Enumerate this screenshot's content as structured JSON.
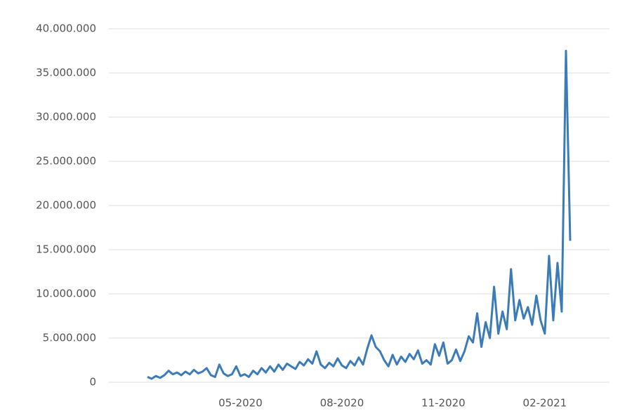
{
  "chart_data": {
    "type": "line",
    "categories": [
      null,
      null,
      null,
      null,
      null,
      null,
      null,
      null,
      null,
      null,
      null,
      null,
      null,
      null,
      null,
      null,
      null,
      null,
      null,
      null,
      null,
      null,
      "05-2020",
      null,
      null,
      null,
      null,
      null,
      null,
      null,
      null,
      null,
      null,
      null,
      null,
      null,
      null,
      null,
      null,
      null,
      null,
      null,
      null,
      null,
      null,
      null,
      "08-2020",
      null,
      null,
      null,
      null,
      null,
      null,
      null,
      null,
      null,
      null,
      null,
      null,
      null,
      null,
      null,
      null,
      null,
      null,
      null,
      null,
      null,
      null,
      null,
      "11-2020",
      null,
      null,
      null,
      null,
      null,
      null,
      null,
      null,
      null,
      null,
      null,
      null,
      null,
      null,
      null,
      null,
      null,
      null,
      null,
      null,
      null,
      null,
      null,
      "02-2021",
      null,
      null,
      null,
      null,
      null,
      null
    ],
    "values": [
      600000,
      400000,
      700000,
      500000,
      800000,
      1300000,
      900000,
      1100000,
      800000,
      1200000,
      900000,
      1400000,
      1000000,
      1200000,
      1600000,
      800000,
      600000,
      2000000,
      1000000,
      700000,
      900000,
      1800000,
      700000,
      900000,
      600000,
      1300000,
      900000,
      1600000,
      1100000,
      1800000,
      1200000,
      2000000,
      1400000,
      2100000,
      1800000,
      1500000,
      2300000,
      1900000,
      2600000,
      2100000,
      3500000,
      2000000,
      1600000,
      2200000,
      1800000,
      2700000,
      1900000,
      1600000,
      2400000,
      1900000,
      2800000,
      2000000,
      3800000,
      5300000,
      4000000,
      3500000,
      2500000,
      1800000,
      3100000,
      2000000,
      2900000,
      2300000,
      3200000,
      2600000,
      3600000,
      2100000,
      2500000,
      2000000,
      4300000,
      3000000,
      4500000,
      2100000,
      2500000,
      3700000,
      2400000,
      3500000,
      5200000,
      4500000,
      7800000,
      4000000,
      6800000,
      5000000,
      10800000,
      5500000,
      8000000,
      6000000,
      12800000,
      7000000,
      9300000,
      7200000,
      8500000,
      6500000,
      9800000,
      7000000,
      5500000,
      14300000,
      7000000,
      13500000,
      8000000,
      37500000,
      16000000
    ],
    "color": "#3a7bb8",
    "ylim": [
      0,
      40000000
    ],
    "yticks": [
      0,
      {
        "value": 5000000,
        "label": "5.000.000"
      },
      {
        "value": 10000000,
        "label": "10.000.000"
      },
      {
        "value": 15000000,
        "label": "15.000.000"
      },
      {
        "value": 20000000,
        "label": "20.000.000"
      },
      {
        "value": 25000000,
        "label": "25.000.000"
      },
      {
        "value": 30000000,
        "label": "30.000.000"
      },
      {
        "value": 35000000,
        "label": "35.000.000"
      },
      {
        "value": 40000000,
        "label": "40.000.000"
      }
    ],
    "grid": true
  }
}
